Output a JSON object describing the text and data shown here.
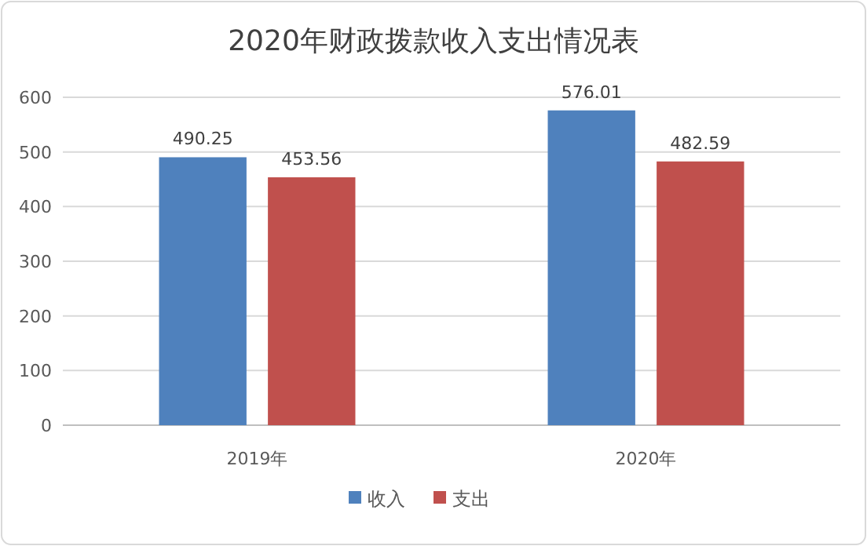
{
  "chart_data": {
    "type": "bar",
    "title": "2020年财政拨款收入支出情况表",
    "categories": [
      "2019年",
      "2020年"
    ],
    "series": [
      {
        "name": "收入",
        "color": "#4f81bd",
        "values": [
          490.25,
          576.01
        ]
      },
      {
        "name": "支出",
        "color": "#c0504d",
        "values": [
          453.56,
          482.59
        ]
      }
    ],
    "ylim": [
      0,
      600
    ],
    "yticks": [
      0,
      100,
      200,
      300,
      400,
      500,
      600
    ],
    "grid": "y",
    "legend": "bottom",
    "data_labels": true
  }
}
